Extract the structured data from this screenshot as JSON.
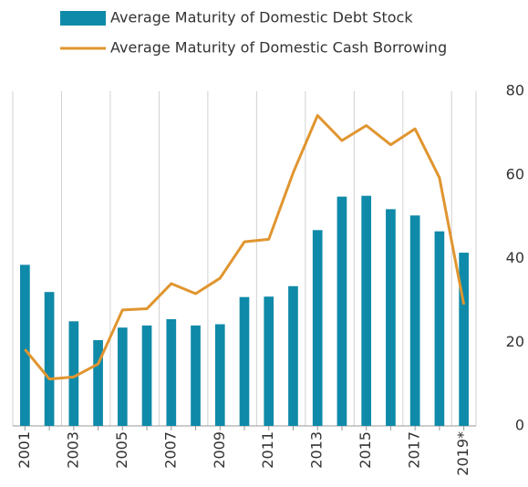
{
  "chart_data": {
    "type": "bar-line",
    "categories": [
      "2001",
      null,
      "2003",
      null,
      "2005",
      null,
      "2007",
      null,
      "2009",
      null,
      "2011",
      null,
      "2013",
      null,
      "2015",
      null,
      "2017",
      null,
      "2019*"
    ],
    "series": [
      {
        "name": "Average Maturity of Domestic Debt Stock",
        "type": "bar",
        "color": "#0f8aa9",
        "values": [
          38.5,
          32,
          25,
          20.5,
          23.5,
          24,
          25.5,
          24,
          24.3,
          30.8,
          30.9,
          33.4,
          46.8,
          54.8,
          55,
          51.8,
          50.3,
          46.5,
          41.4
        ]
      },
      {
        "name": "Average Maturity of Domestic Cash Borrowing",
        "type": "line",
        "color": "#e0952f",
        "values": [
          18.3,
          11.2,
          11.7,
          14.8,
          27.7,
          28,
          34,
          31.6,
          35.3,
          44,
          44.6,
          60.5,
          74.2,
          68.2,
          71.8,
          67.2,
          71,
          59.3,
          29
        ]
      }
    ],
    "ylim": [
      0,
      80
    ],
    "yticks": [
      0,
      20,
      40,
      60,
      80
    ],
    "y_axis_side": "right",
    "grid": "x",
    "legend": "top"
  }
}
